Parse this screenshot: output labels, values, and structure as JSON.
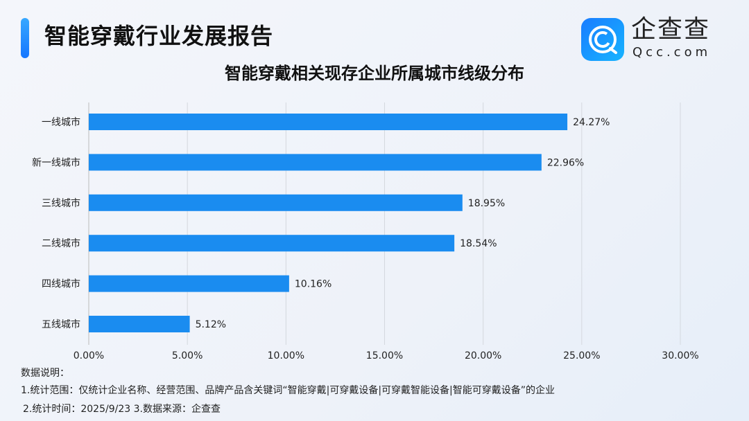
{
  "header": {
    "title": "智能穿戴行业发展报告",
    "logo_text": "企查查",
    "logo_sub": "Qcc.com",
    "accent": "#1a88f0"
  },
  "chart_data": {
    "type": "bar",
    "orientation": "horizontal",
    "title": "智能穿戴相关现存企业所属城市线级分布",
    "categories": [
      "一线城市",
      "新一线城市",
      "三线城市",
      "二线城市",
      "四线城市",
      "五线城市"
    ],
    "values": [
      24.27,
      22.96,
      18.95,
      18.54,
      10.16,
      5.12
    ],
    "data_labels": [
      "24.27%",
      "22.96%",
      "18.95%",
      "18.54%",
      "10.16%",
      "5.12%"
    ],
    "xlim": [
      0,
      30
    ],
    "xticks": [
      0,
      5,
      10,
      15,
      20,
      25,
      30
    ],
    "xtick_labels": [
      "0.00%",
      "5.00%",
      "10.00%",
      "15.00%",
      "20.00%",
      "25.00%",
      "30.00%"
    ],
    "grid": "vertical",
    "bar_color": "#1a8cf0"
  },
  "notes": {
    "heading": "数据说明：",
    "line1": "1.统计范围：仅统计企业名称、经营范围、品牌产品含关键词“智能穿戴|可穿戴设备|可穿戴智能设备|智能可穿戴设备”的企业",
    "line2": "2.统计时间：2025/9/23  3.数据来源：企查查"
  }
}
